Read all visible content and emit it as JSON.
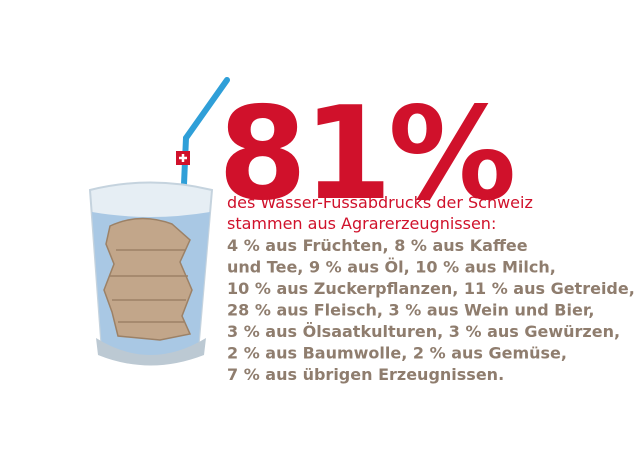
{
  "headline": "81%",
  "subtitle_lines": [
    "des Wasser-Fussabdrucks der Schweiz",
    "stammen aus Agrarerzeugnissen:"
  ],
  "detail_lines": [
    "4 % aus Früchten, 8 % aus Kaffee",
    "und Tee, 9 % aus Öl, 10 % aus Milch,",
    "10 % aus Zuckerpflanzen, 11 % aus Getreide,",
    "28 % aus Fleisch, 3 % aus Wein und Bier,",
    "3 % aus Ölsaatkulturen, 3 % aus Gewürzen,",
    "2 % aus Baumwolle, 2 % aus Gemüse,",
    "7 % aus übrigen Erzeugnissen."
  ]
}
